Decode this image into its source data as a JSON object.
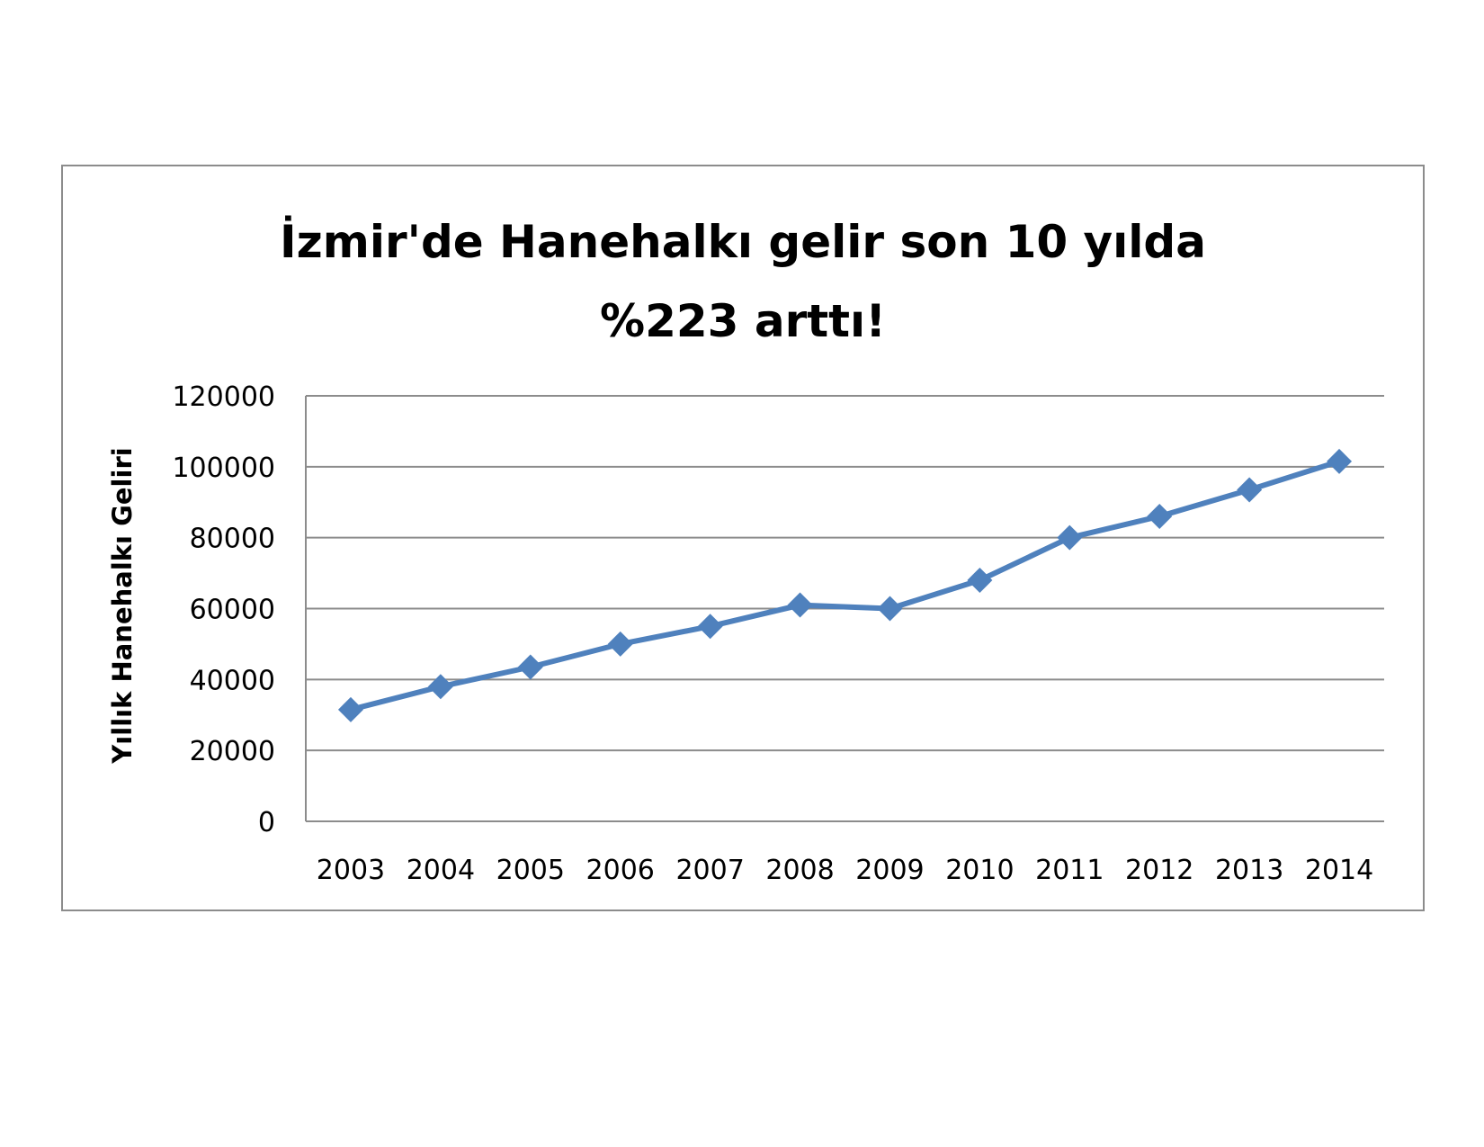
{
  "chart_data": {
    "type": "line",
    "title_lines": [
      "İzmir'de Hanehalkı gelir son 10 yılda",
      "%223 arttı!"
    ],
    "xlabel": "",
    "ylabel": "Yıllık Hanehalkı Geliri",
    "categories": [
      "2003",
      "2004",
      "2005",
      "2006",
      "2007",
      "2008",
      "2009",
      "2010",
      "2011",
      "2012",
      "2013",
      "2014"
    ],
    "series": [
      {
        "values": [
          31500,
          38000,
          43500,
          50000,
          55000,
          61000,
          60000,
          68000,
          80000,
          86000,
          93500,
          101500
        ],
        "color": "#4f81bd",
        "marker": "diamond"
      }
    ],
    "ylim": [
      0,
      120000
    ],
    "yticks": [
      "0",
      "20000",
      "40000",
      "60000",
      "80000",
      "100000",
      "120000"
    ],
    "grid": true,
    "legend": "none"
  }
}
